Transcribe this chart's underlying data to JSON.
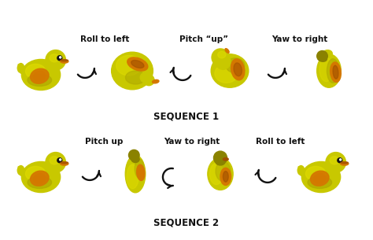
{
  "background_color": "#ffffff",
  "seq1_label": "SEQUENCE 1",
  "seq2_label": "SEQUENCE 2",
  "seq1_labels": [
    "Roll to left",
    "Pitch “up”",
    "Yaw to right"
  ],
  "seq2_labels": [
    "Pitch up",
    "Yaw to right",
    "Roll to left"
  ],
  "yc": "#c8c800",
  "yc_light": "#e0dc00",
  "yc_dark": "#8a8200",
  "yc_mid": "#b0aa00",
  "oc": "#d47800",
  "oc_dark": "#a05000",
  "black": "#111111",
  "white": "#ffffff",
  "label_fontsize": 7.5,
  "seq_label_fontsize": 8.5
}
